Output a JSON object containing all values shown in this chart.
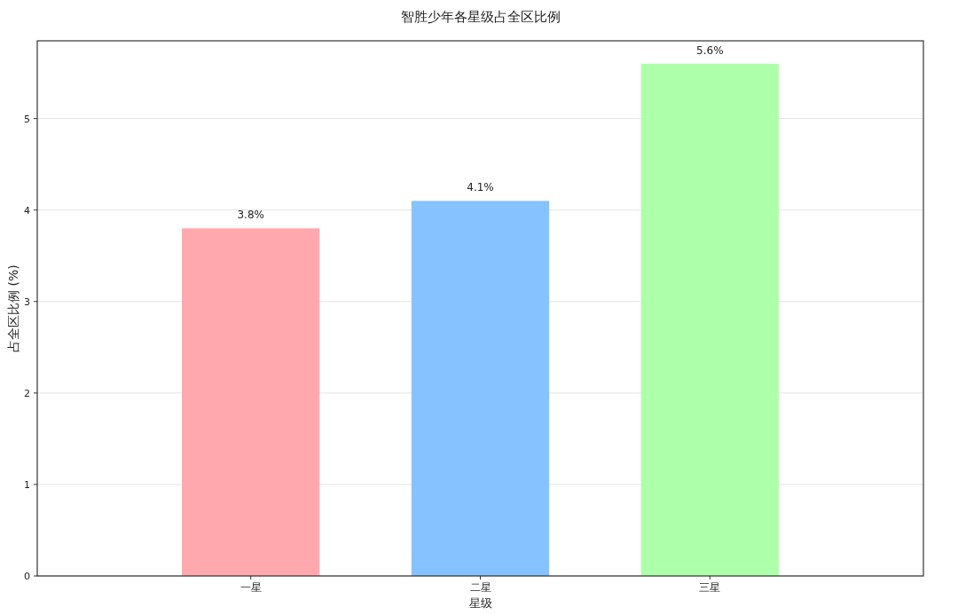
{
  "chart_data": {
    "type": "bar",
    "title": "智胜少年各星级占全区比例",
    "xlabel": "星级",
    "ylabel": "占全区比例 (%)",
    "categories": [
      "一星",
      "二星",
      "三星"
    ],
    "values": [
      3.8,
      4.1,
      5.6
    ],
    "colors": [
      "#ffa9ae",
      "#85c2ff",
      "#aeffaa"
    ],
    "value_labels": [
      "3.8%",
      "4.1%",
      "5.6%"
    ],
    "ylim": [
      0,
      5.85
    ],
    "yticks": [
      0,
      1,
      2,
      3,
      4,
      5
    ],
    "grid": "y"
  }
}
